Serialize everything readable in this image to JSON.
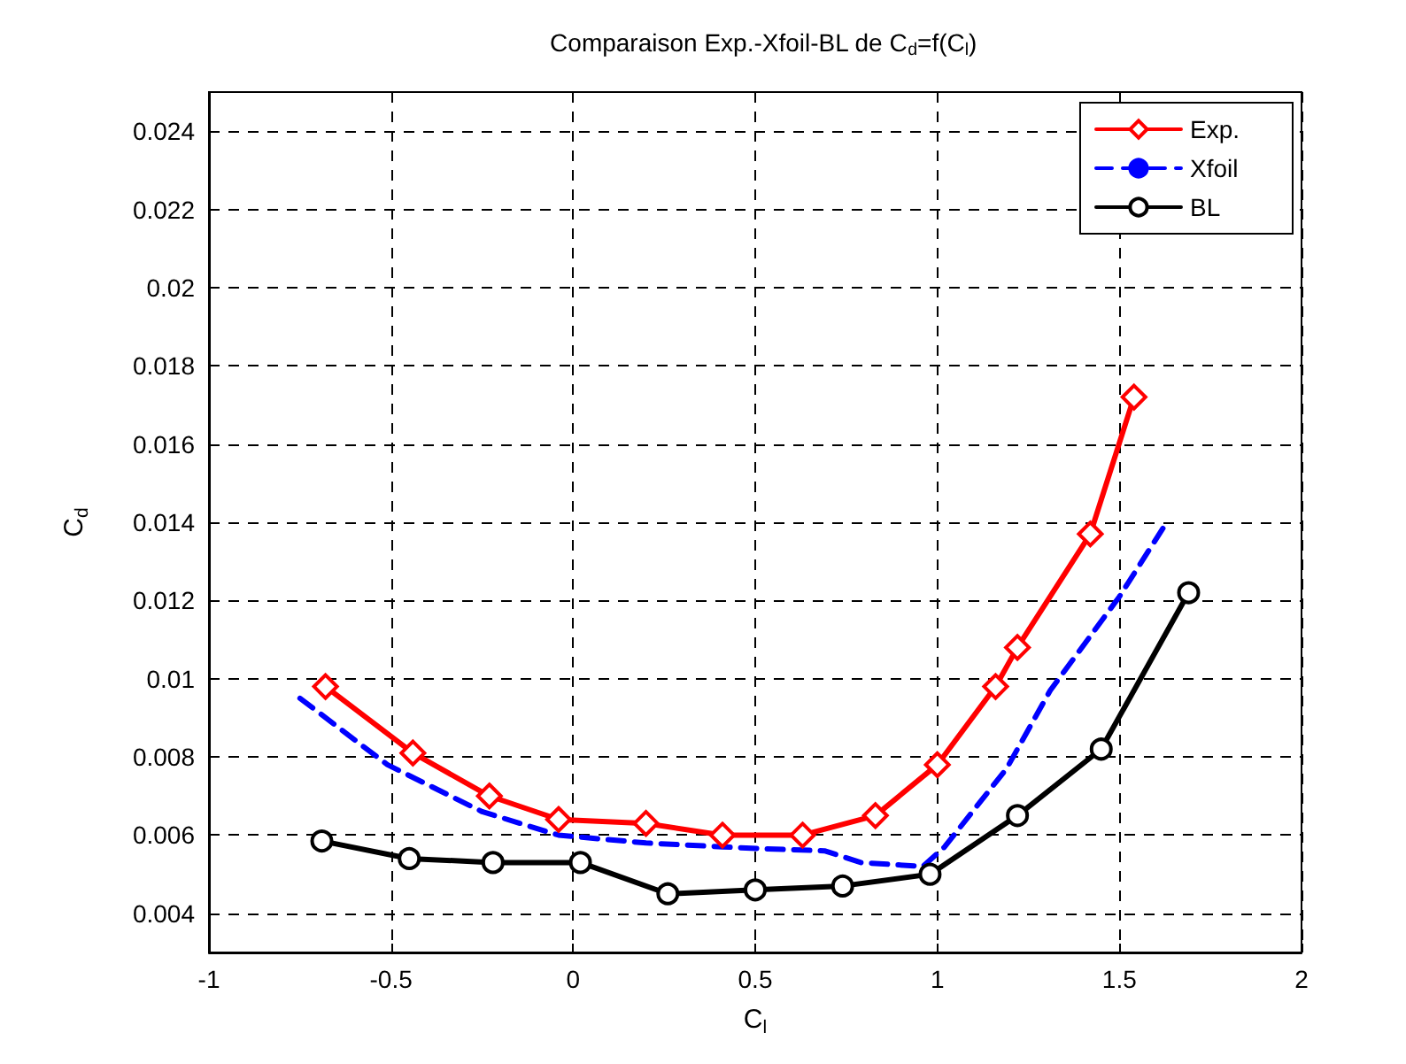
{
  "chart_data": {
    "type": "line",
    "title": "Comparaison Exp.-Xfoil-BL de C$_{d}$=f(C$_{l}$)",
    "xlabel": "C$_{l}$",
    "ylabel": "C$_{d}$",
    "xlim": [
      -1,
      2
    ],
    "xticks": [
      -1,
      -0.5,
      0,
      0.5,
      1,
      1.5,
      2
    ],
    "ylim": [
      0.003,
      0.025
    ],
    "yticks": [
      0.004,
      0.006,
      0.008,
      0.01,
      0.012,
      0.014,
      0.016,
      0.018,
      0.02,
      0.022,
      0.024
    ],
    "grid": true,
    "legend": "top right",
    "series": [
      {
        "name": "Exp.",
        "color": "#ff0000",
        "marker": "diamond",
        "line_style": "solid",
        "x": [
          -0.68,
          -0.44,
          -0.23,
          -0.04,
          0.2,
          0.41,
          0.63,
          0.83,
          1.0,
          1.16,
          1.22,
          1.42,
          1.54
        ],
        "values": [
          0.0098,
          0.0081,
          0.007,
          0.0064,
          0.0063,
          0.006,
          0.006,
          0.0065,
          0.0078,
          0.0098,
          0.0108,
          0.0137,
          0.0172
        ]
      },
      {
        "name": "Xfoil",
        "color": "#0000ff",
        "marker": "none",
        "line_style": "dashed",
        "x": [
          -0.75,
          -0.51,
          -0.25,
          -0.04,
          0.2,
          0.41,
          0.53,
          0.69,
          0.79,
          0.96,
          1.02,
          1.19,
          1.31,
          1.5,
          1.63
        ],
        "values": [
          0.0095,
          0.0078,
          0.0066,
          0.006,
          0.0058,
          0.0057,
          0.00565,
          0.0056,
          0.0053,
          0.0052,
          0.0057,
          0.0077,
          0.0097,
          0.0121,
          0.014
        ]
      },
      {
        "name": "BL",
        "color": "#000000",
        "marker": "circle",
        "line_style": "solid",
        "x": [
          -0.69,
          -0.45,
          -0.22,
          0.02,
          0.26,
          0.5,
          0.74,
          0.98,
          1.22,
          1.45,
          1.69
        ],
        "values": [
          0.00585,
          0.0054,
          0.0053,
          0.0053,
          0.0045,
          0.0046,
          0.0047,
          0.005,
          0.0065,
          0.0082,
          0.0122
        ]
      }
    ]
  }
}
